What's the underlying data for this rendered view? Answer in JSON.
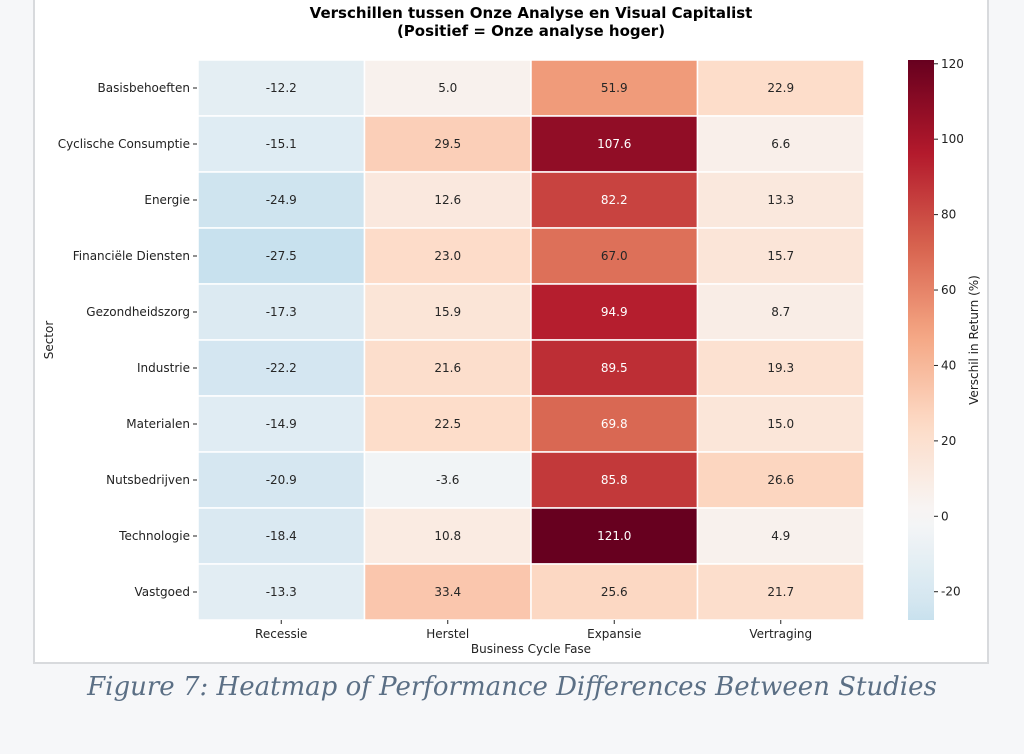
{
  "chart_data": {
    "type": "heatmap",
    "title": "Verschillen tussen Onze Analyse en Visual Capitalist",
    "subtitle": "(Positief = Onze analyse hoger)",
    "xlabel": "Business Cycle Fase",
    "ylabel": "Sector",
    "x_categories": [
      "Recessie",
      "Herstel",
      "Expansie",
      "Vertraging"
    ],
    "y_categories": [
      "Basisbehoeften",
      "Cyclische Consumptie",
      "Energie",
      "Financiële Diensten",
      "Gezondheidszorg",
      "Industrie",
      "Materialen",
      "Nutsbedrijven",
      "Technologie",
      "Vastgoed"
    ],
    "values": [
      [
        -12.2,
        5.0,
        51.9,
        22.9
      ],
      [
        -15.1,
        29.5,
        107.6,
        6.6
      ],
      [
        -24.9,
        12.6,
        82.2,
        13.3
      ],
      [
        -27.5,
        23.0,
        67.0,
        15.7
      ],
      [
        -17.3,
        15.9,
        94.9,
        8.7
      ],
      [
        -22.2,
        21.6,
        89.5,
        19.3
      ],
      [
        -14.9,
        22.5,
        69.8,
        15.0
      ],
      [
        -20.9,
        -3.6,
        85.8,
        26.6
      ],
      [
        -18.4,
        10.8,
        121.0,
        4.9
      ],
      [
        -13.3,
        33.4,
        25.6,
        21.7
      ]
    ],
    "value_format": "1 decimal",
    "colormap": "RdBu_r",
    "colorbar": {
      "label": "Verschil in Return (%)",
      "range": [
        -27.5,
        121.0
      ],
      "center": 0,
      "ticks": [
        -20,
        0,
        20,
        40,
        60,
        80,
        100,
        120
      ]
    },
    "grid": false,
    "legend": "colorbar-right"
  },
  "figure": {
    "caption": "Figure 7: Heatmap of Performance Differences Between Studies"
  }
}
